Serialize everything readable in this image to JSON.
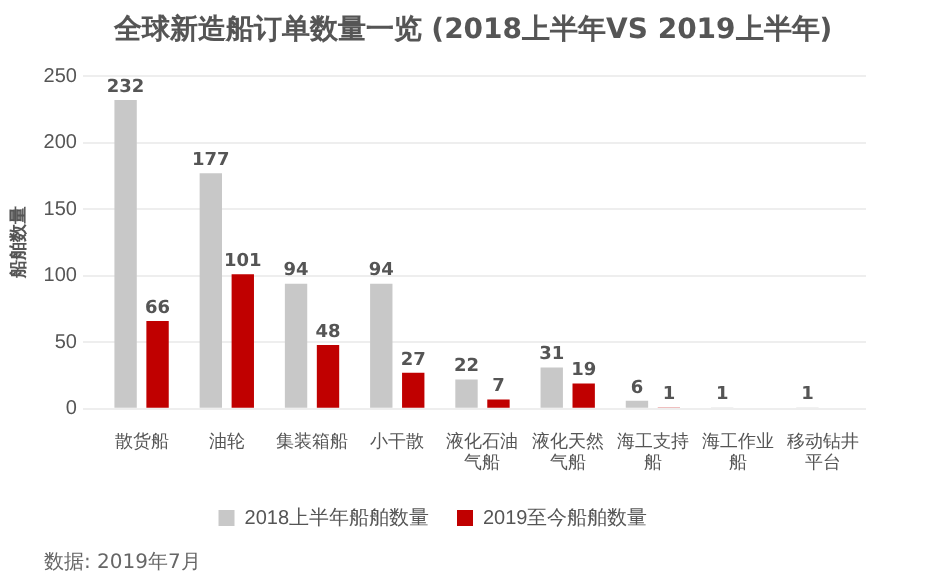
{
  "chart_data": {
    "type": "bar",
    "title": "全球新造船订单数量一览 (2018上半年VS 2019上半年)",
    "ylabel": "船舶数量",
    "categories": [
      "散货船",
      "油轮",
      "集装箱船",
      "小干散",
      "液化石油气船",
      "液化天然气船",
      "海工支持船",
      "海工作业船",
      "移动钻井平台"
    ],
    "series": [
      {
        "name": "2018上半年船舶数量",
        "color": "#c8c8c8",
        "values": [
          232,
          177,
          94,
          94,
          22,
          31,
          6,
          1,
          1
        ]
      },
      {
        "name": "2019至今船舶数量",
        "color": "#c00000",
        "values": [
          66,
          101,
          48,
          27,
          7,
          19,
          1,
          null,
          null
        ]
      }
    ],
    "ylim": [
      0,
      250
    ],
    "yticks": [
      0,
      50,
      100,
      150,
      200,
      250
    ],
    "grid": "y",
    "legend": "bottom",
    "data_labels": true,
    "annotations": [
      "数据: 2019年7月"
    ]
  }
}
